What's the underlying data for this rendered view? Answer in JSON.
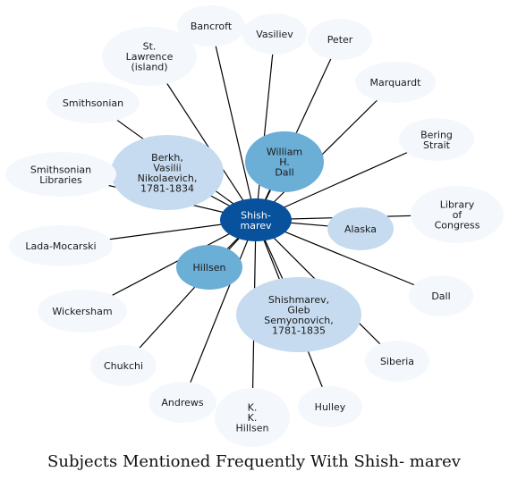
{
  "title": "Subjects Mentioned Frequently With Shish- marev",
  "colors": {
    "edge": "#000000",
    "center": "#08519c",
    "strong": "#6baed6",
    "medium": "#c6dbef",
    "weak": "#f4f8fd"
  },
  "center": {
    "id": "shishmarev",
    "lines": [
      "Shish-",
      "marev"
    ]
  },
  "nodes": [
    {
      "id": "bancroft",
      "lines": [
        "Bancroft"
      ],
      "weight": "weak"
    },
    {
      "id": "vasiliev",
      "lines": [
        "Vasiliev"
      ],
      "weight": "weak"
    },
    {
      "id": "peter",
      "lines": [
        "Peter"
      ],
      "weight": "weak"
    },
    {
      "id": "st-lawrence",
      "lines": [
        "St.",
        "Lawrence",
        "(island)"
      ],
      "weight": "weak"
    },
    {
      "id": "marquardt",
      "lines": [
        "Marquardt"
      ],
      "weight": "weak"
    },
    {
      "id": "smithsonian",
      "lines": [
        "Smithsonian"
      ],
      "weight": "weak"
    },
    {
      "id": "berkh",
      "lines": [
        "Berkh,",
        "Vasilii",
        "Nikolaevich,",
        "1781-1834"
      ],
      "weight": "medium"
    },
    {
      "id": "william-dall",
      "lines": [
        "William",
        "H.",
        "Dall"
      ],
      "weight": "strong"
    },
    {
      "id": "bering-strait",
      "lines": [
        "Bering",
        "Strait"
      ],
      "weight": "weak"
    },
    {
      "id": "smithsonian-libraries",
      "lines": [
        "Smithsonian",
        "Libraries"
      ],
      "weight": "weak"
    },
    {
      "id": "library-of-congress",
      "lines": [
        "Library",
        "of",
        "Congress"
      ],
      "weight": "weak"
    },
    {
      "id": "alaska",
      "lines": [
        "Alaska"
      ],
      "weight": "medium"
    },
    {
      "id": "lada-mocarski",
      "lines": [
        "Lada-Mocarski"
      ],
      "weight": "weak"
    },
    {
      "id": "hillsen",
      "lines": [
        "Hillsen"
      ],
      "weight": "strong"
    },
    {
      "id": "dall",
      "lines": [
        "Dall"
      ],
      "weight": "weak"
    },
    {
      "id": "wickersham",
      "lines": [
        "Wickersham"
      ],
      "weight": "weak"
    },
    {
      "id": "gleb-shishmarev",
      "lines": [
        "Shishmarev,",
        "Gleb",
        "Semyonovich,",
        "1781-1835"
      ],
      "weight": "medium"
    },
    {
      "id": "siberia",
      "lines": [
        "Siberia"
      ],
      "weight": "weak"
    },
    {
      "id": "chukchi",
      "lines": [
        "Chukchi"
      ],
      "weight": "weak"
    },
    {
      "id": "andrews",
      "lines": [
        "Andrews"
      ],
      "weight": "weak"
    },
    {
      "id": "kk-hillsen",
      "lines": [
        "K.",
        "K.",
        "Hillsen"
      ],
      "weight": "weak"
    },
    {
      "id": "hulley",
      "lines": [
        "Hulley"
      ],
      "weight": "weak"
    }
  ]
}
